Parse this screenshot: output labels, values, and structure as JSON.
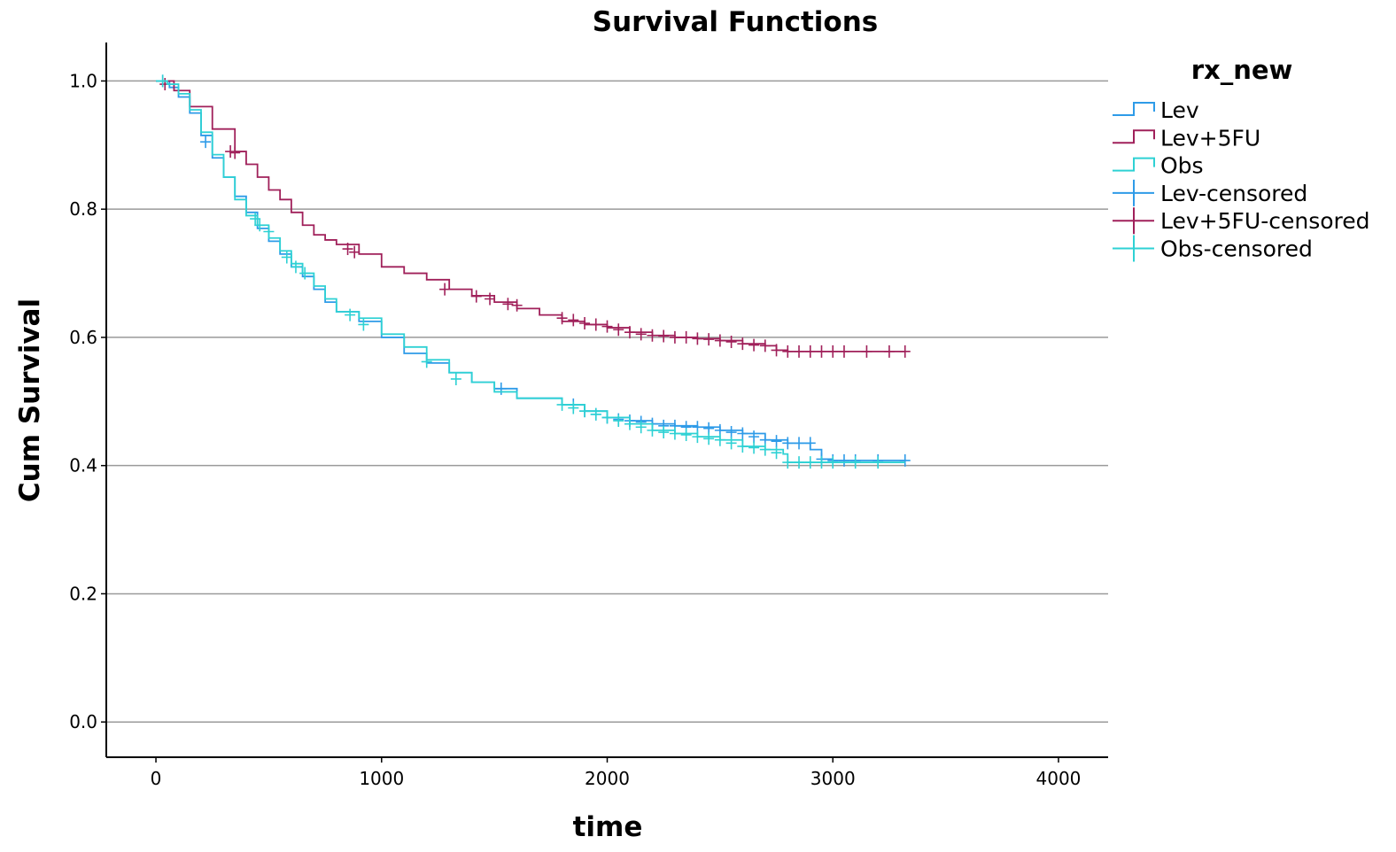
{
  "chart_data": {
    "type": "line",
    "title": "Survival Functions",
    "xlabel": "time",
    "ylabel": "Cum Survival",
    "xlim": [
      -220,
      4220
    ],
    "ylim": [
      -0.055,
      1.06
    ],
    "xticks": [
      0,
      1000,
      2000,
      3000,
      4000
    ],
    "xtick_labels": [
      "0",
      "1000",
      "2000",
      "3000",
      "4000"
    ],
    "yticks": [
      0.0,
      0.2,
      0.4,
      0.6,
      0.8,
      1.0
    ],
    "ytick_labels": [
      "0.0",
      "0.2",
      "0.4",
      "0.6",
      "0.8",
      "1.0"
    ],
    "grid": "horizontal",
    "legend_title": "rx_new",
    "legend_position": "top-right outside plot",
    "series": [
      {
        "name": "Lev",
        "color": "#2e9be8",
        "points": [
          [
            0,
            1.0
          ],
          [
            60,
            0.99
          ],
          [
            100,
            0.975
          ],
          [
            150,
            0.95
          ],
          [
            200,
            0.915
          ],
          [
            250,
            0.88
          ],
          [
            300,
            0.85
          ],
          [
            350,
            0.82
          ],
          [
            400,
            0.795
          ],
          [
            450,
            0.77
          ],
          [
            500,
            0.75
          ],
          [
            550,
            0.73
          ],
          [
            600,
            0.71
          ],
          [
            650,
            0.695
          ],
          [
            700,
            0.675
          ],
          [
            750,
            0.655
          ],
          [
            800,
            0.64
          ],
          [
            900,
            0.625
          ],
          [
            1000,
            0.6
          ],
          [
            1100,
            0.575
          ],
          [
            1200,
            0.56
          ],
          [
            1300,
            0.545
          ],
          [
            1400,
            0.53
          ],
          [
            1500,
            0.52
          ],
          [
            1600,
            0.505
          ],
          [
            1800,
            0.495
          ],
          [
            1900,
            0.485
          ],
          [
            2000,
            0.475
          ],
          [
            2100,
            0.47
          ],
          [
            2200,
            0.465
          ],
          [
            2300,
            0.462
          ],
          [
            2400,
            0.46
          ],
          [
            2500,
            0.455
          ],
          [
            2600,
            0.45
          ],
          [
            2700,
            0.44
          ],
          [
            2800,
            0.435
          ],
          [
            2900,
            0.425
          ],
          [
            2950,
            0.41
          ],
          [
            3000,
            0.408
          ],
          [
            3320,
            0.408
          ]
        ],
        "censored": [
          [
            30,
            1.0
          ],
          [
            220,
            0.905
          ],
          [
            1530,
            0.52
          ],
          [
            1850,
            0.495
          ],
          [
            1900,
            0.485
          ],
          [
            1950,
            0.48
          ],
          [
            2000,
            0.475
          ],
          [
            2050,
            0.472
          ],
          [
            2100,
            0.47
          ],
          [
            2150,
            0.468
          ],
          [
            2200,
            0.465
          ],
          [
            2250,
            0.462
          ],
          [
            2300,
            0.462
          ],
          [
            2350,
            0.46
          ],
          [
            2400,
            0.46
          ],
          [
            2450,
            0.458
          ],
          [
            2500,
            0.455
          ],
          [
            2550,
            0.452
          ],
          [
            2600,
            0.45
          ],
          [
            2650,
            0.445
          ],
          [
            2700,
            0.44
          ],
          [
            2750,
            0.438
          ],
          [
            2800,
            0.435
          ],
          [
            2850,
            0.435
          ],
          [
            2900,
            0.435
          ],
          [
            2950,
            0.41
          ],
          [
            3000,
            0.408
          ],
          [
            3050,
            0.408
          ],
          [
            3100,
            0.408
          ],
          [
            3200,
            0.408
          ],
          [
            3320,
            0.408
          ]
        ]
      },
      {
        "name": "Lev+5FU",
        "color": "#a0205a",
        "points": [
          [
            0,
            1.0
          ],
          [
            80,
            0.985
          ],
          [
            150,
            0.96
          ],
          [
            250,
            0.925
          ],
          [
            350,
            0.89
          ],
          [
            400,
            0.87
          ],
          [
            450,
            0.85
          ],
          [
            500,
            0.83
          ],
          [
            550,
            0.815
          ],
          [
            600,
            0.795
          ],
          [
            650,
            0.775
          ],
          [
            700,
            0.76
          ],
          [
            750,
            0.752
          ],
          [
            800,
            0.745
          ],
          [
            900,
            0.73
          ],
          [
            1000,
            0.71
          ],
          [
            1100,
            0.7
          ],
          [
            1200,
            0.69
          ],
          [
            1300,
            0.675
          ],
          [
            1400,
            0.665
          ],
          [
            1500,
            0.655
          ],
          [
            1600,
            0.645
          ],
          [
            1700,
            0.635
          ],
          [
            1800,
            0.625
          ],
          [
            1900,
            0.62
          ],
          [
            2000,
            0.615
          ],
          [
            2100,
            0.608
          ],
          [
            2200,
            0.603
          ],
          [
            2300,
            0.6
          ],
          [
            2400,
            0.598
          ],
          [
            2500,
            0.595
          ],
          [
            2600,
            0.59
          ],
          [
            2700,
            0.587
          ],
          [
            2750,
            0.58
          ],
          [
            2800,
            0.578
          ],
          [
            3320,
            0.578
          ]
        ],
        "censored": [
          [
            40,
            0.995
          ],
          [
            330,
            0.89
          ],
          [
            350,
            0.888
          ],
          [
            850,
            0.738
          ],
          [
            880,
            0.733
          ],
          [
            1280,
            0.675
          ],
          [
            1420,
            0.664
          ],
          [
            1480,
            0.66
          ],
          [
            1560,
            0.652
          ],
          [
            1600,
            0.65
          ],
          [
            1800,
            0.63
          ],
          [
            1850,
            0.627
          ],
          [
            1900,
            0.622
          ],
          [
            1950,
            0.62
          ],
          [
            2000,
            0.617
          ],
          [
            2050,
            0.612
          ],
          [
            2100,
            0.608
          ],
          [
            2150,
            0.605
          ],
          [
            2200,
            0.603
          ],
          [
            2250,
            0.602
          ],
          [
            2300,
            0.6
          ],
          [
            2350,
            0.6
          ],
          [
            2400,
            0.598
          ],
          [
            2450,
            0.597
          ],
          [
            2500,
            0.595
          ],
          [
            2550,
            0.593
          ],
          [
            2600,
            0.59
          ],
          [
            2650,
            0.588
          ],
          [
            2700,
            0.587
          ],
          [
            2750,
            0.58
          ],
          [
            2800,
            0.578
          ],
          [
            2850,
            0.578
          ],
          [
            2900,
            0.578
          ],
          [
            2950,
            0.578
          ],
          [
            3000,
            0.578
          ],
          [
            3050,
            0.578
          ],
          [
            3150,
            0.578
          ],
          [
            3250,
            0.578
          ],
          [
            3320,
            0.578
          ]
        ]
      },
      {
        "name": "Obs",
        "color": "#2ed1d4",
        "points": [
          [
            0,
            1.0
          ],
          [
            50,
            0.995
          ],
          [
            100,
            0.98
          ],
          [
            150,
            0.955
          ],
          [
            200,
            0.92
          ],
          [
            250,
            0.885
          ],
          [
            300,
            0.85
          ],
          [
            350,
            0.815
          ],
          [
            400,
            0.79
          ],
          [
            450,
            0.775
          ],
          [
            500,
            0.755
          ],
          [
            550,
            0.735
          ],
          [
            600,
            0.715
          ],
          [
            650,
            0.7
          ],
          [
            700,
            0.68
          ],
          [
            750,
            0.66
          ],
          [
            800,
            0.64
          ],
          [
            900,
            0.63
          ],
          [
            1000,
            0.605
          ],
          [
            1100,
            0.585
          ],
          [
            1200,
            0.565
          ],
          [
            1300,
            0.545
          ],
          [
            1400,
            0.53
          ],
          [
            1500,
            0.515
          ],
          [
            1600,
            0.505
          ],
          [
            1800,
            0.495
          ],
          [
            1900,
            0.485
          ],
          [
            2000,
            0.475
          ],
          [
            2100,
            0.465
          ],
          [
            2200,
            0.455
          ],
          [
            2300,
            0.45
          ],
          [
            2400,
            0.445
          ],
          [
            2500,
            0.44
          ],
          [
            2600,
            0.43
          ],
          [
            2700,
            0.425
          ],
          [
            2780,
            0.418
          ],
          [
            2800,
            0.405
          ],
          [
            3320,
            0.405
          ]
        ],
        "censored": [
          [
            30,
            1.0
          ],
          [
            440,
            0.785
          ],
          [
            460,
            0.775
          ],
          [
            500,
            0.765
          ],
          [
            580,
            0.725
          ],
          [
            620,
            0.71
          ],
          [
            660,
            0.7
          ],
          [
            860,
            0.635
          ],
          [
            920,
            0.62
          ],
          [
            1200,
            0.562
          ],
          [
            1330,
            0.535
          ],
          [
            1800,
            0.495
          ],
          [
            1850,
            0.49
          ],
          [
            1900,
            0.485
          ],
          [
            1950,
            0.48
          ],
          [
            2000,
            0.475
          ],
          [
            2050,
            0.47
          ],
          [
            2100,
            0.465
          ],
          [
            2150,
            0.46
          ],
          [
            2200,
            0.455
          ],
          [
            2250,
            0.452
          ],
          [
            2300,
            0.45
          ],
          [
            2350,
            0.448
          ],
          [
            2400,
            0.445
          ],
          [
            2450,
            0.442
          ],
          [
            2500,
            0.44
          ],
          [
            2550,
            0.435
          ],
          [
            2600,
            0.43
          ],
          [
            2650,
            0.428
          ],
          [
            2700,
            0.425
          ],
          [
            2750,
            0.42
          ],
          [
            2800,
            0.405
          ],
          [
            2850,
            0.405
          ],
          [
            2900,
            0.405
          ],
          [
            2950,
            0.405
          ],
          [
            3000,
            0.405
          ],
          [
            3100,
            0.405
          ],
          [
            3200,
            0.405
          ]
        ]
      }
    ],
    "legend_entries": [
      {
        "label": "Lev",
        "color": "#2e9be8",
        "kind": "line"
      },
      {
        "label": "Lev+5FU",
        "color": "#a0205a",
        "kind": "line"
      },
      {
        "label": "Obs",
        "color": "#2ed1d4",
        "kind": "line"
      },
      {
        "label": "Lev-censored",
        "color": "#2e9be8",
        "kind": "cross"
      },
      {
        "label": "Lev+5FU-censored",
        "color": "#a0205a",
        "kind": "cross"
      },
      {
        "label": "Obs-censored",
        "color": "#2ed1d4",
        "kind": "cross"
      }
    ]
  }
}
